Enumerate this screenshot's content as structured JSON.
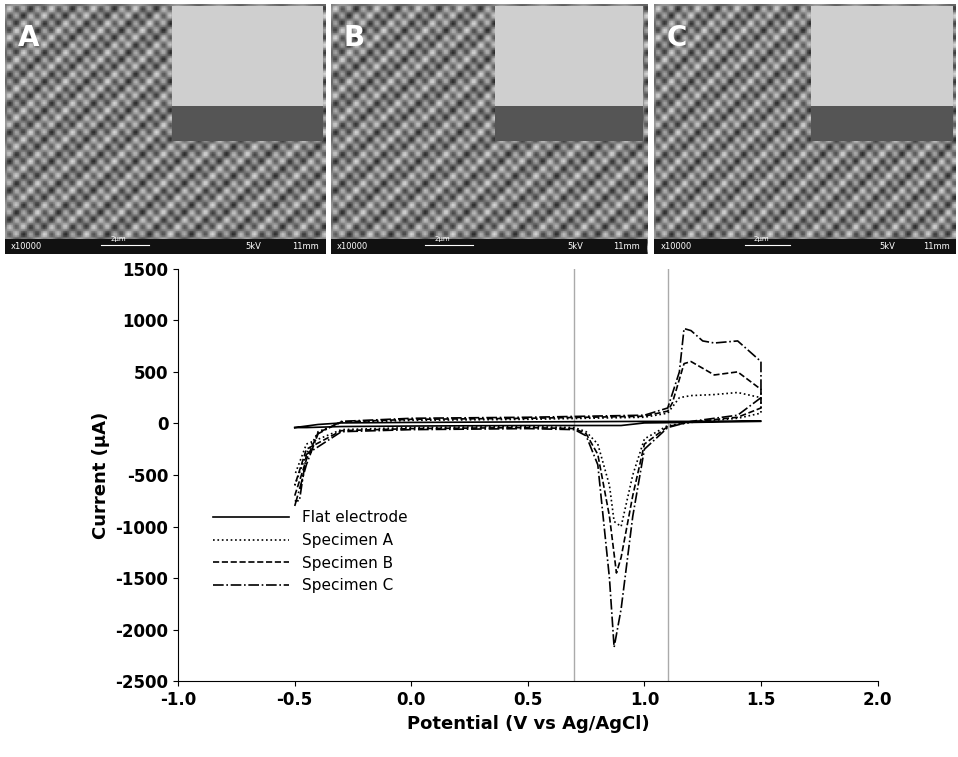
{
  "panels": [
    {
      "label": "A",
      "magnification": "x10000",
      "scale": "2μm",
      "voltage": "5kV",
      "distance": "11mm"
    },
    {
      "label": "B",
      "magnification": "x10000",
      "scale": "2μm",
      "voltage": "5kV",
      "distance": "11mm"
    },
    {
      "label": "C",
      "magnification": "x10000",
      "scale": "2μm",
      "voltage": "5kV",
      "distance": "11mm"
    }
  ],
  "chart_data": {
    "type": "line",
    "x_label": "Potential (V vs Ag/AgCl)",
    "y_label": "Current (μA)",
    "xlim": [
      -1.0,
      2.0
    ],
    "xticks": [
      -1.0,
      -0.5,
      0.0,
      0.5,
      1.0,
      1.5,
      2.0
    ],
    "ylim": [
      -2500,
      1500
    ],
    "yticks": [
      -2500,
      -2000,
      -1500,
      -1000,
      -500,
      0,
      500,
      1000,
      1500
    ],
    "reference_lines": [
      0.7,
      1.1
    ],
    "legend": "lower left",
    "series": [
      {
        "name": "Flat electrode",
        "color": "#000000",
        "line_style": "solid",
        "x": [
          -0.5,
          -0.45,
          -0.4,
          -0.3,
          0.0,
          0.5,
          1.0,
          1.2,
          1.5,
          1.5,
          1.2,
          1.0,
          0.9,
          0.5,
          0.0,
          -0.3,
          -0.45,
          -0.5
        ],
        "values": [
          -40,
          -25,
          -10,
          5,
          10,
          15,
          20,
          20,
          25,
          20,
          10,
          5,
          -20,
          -20,
          -25,
          -30,
          -40,
          -40
        ]
      },
      {
        "name": "Specimen A",
        "color": "#000000",
        "line_style": "dotted",
        "x": [
          -0.5,
          -0.45,
          -0.4,
          -0.3,
          0.0,
          0.5,
          1.0,
          1.1,
          1.15,
          1.2,
          1.3,
          1.4,
          1.5,
          1.5,
          1.4,
          1.2,
          1.1,
          1.0,
          0.95,
          0.9,
          0.87,
          0.85,
          0.8,
          0.75,
          0.7,
          0.5,
          0.0,
          -0.3,
          -0.45,
          -0.5
        ],
        "values": [
          -600,
          -300,
          -80,
          10,
          30,
          40,
          60,
          100,
          250,
          270,
          280,
          300,
          250,
          100,
          50,
          10,
          -20,
          -150,
          -500,
          -1000,
          -950,
          -600,
          -200,
          -80,
          -40,
          -30,
          -40,
          -60,
          -200,
          -500
        ]
      },
      {
        "name": "Specimen B",
        "color": "#000000",
        "line_style": "dashed",
        "x": [
          -0.5,
          -0.45,
          -0.4,
          -0.3,
          0.0,
          0.5,
          1.0,
          1.1,
          1.12,
          1.17,
          1.2,
          1.3,
          1.4,
          1.5,
          1.5,
          1.4,
          1.2,
          1.1,
          1.0,
          0.95,
          0.9,
          0.88,
          0.85,
          0.8,
          0.75,
          0.7,
          0.5,
          0.0,
          -0.3,
          -0.45,
          -0.5
        ],
        "values": [
          -700,
          -350,
          -90,
          15,
          40,
          50,
          70,
          120,
          200,
          580,
          600,
          470,
          500,
          330,
          150,
          60,
          15,
          -30,
          -200,
          -700,
          -1300,
          -1450,
          -900,
          -300,
          -100,
          -50,
          -40,
          -50,
          -70,
          -250,
          -600
        ]
      },
      {
        "name": "Specimen C",
        "color": "#000000",
        "line_style": "dashdot",
        "x": [
          -0.5,
          -0.45,
          -0.4,
          -0.3,
          0.0,
          0.5,
          1.0,
          1.1,
          1.15,
          1.17,
          1.2,
          1.25,
          1.3,
          1.4,
          1.5,
          1.5,
          1.4,
          1.2,
          1.1,
          1.0,
          0.95,
          0.9,
          0.87,
          0.85,
          0.8,
          0.75,
          0.7,
          0.5,
          0.0,
          -0.3,
          -0.45,
          -0.48,
          -0.5
        ],
        "values": [
          -800,
          -400,
          -100,
          20,
          50,
          60,
          80,
          150,
          500,
          920,
          900,
          800,
          780,
          800,
          600,
          250,
          80,
          20,
          -40,
          -250,
          -900,
          -1800,
          -2170,
          -1500,
          -400,
          -120,
          -60,
          -50,
          -60,
          -80,
          -300,
          -750,
          -750
        ]
      }
    ]
  }
}
